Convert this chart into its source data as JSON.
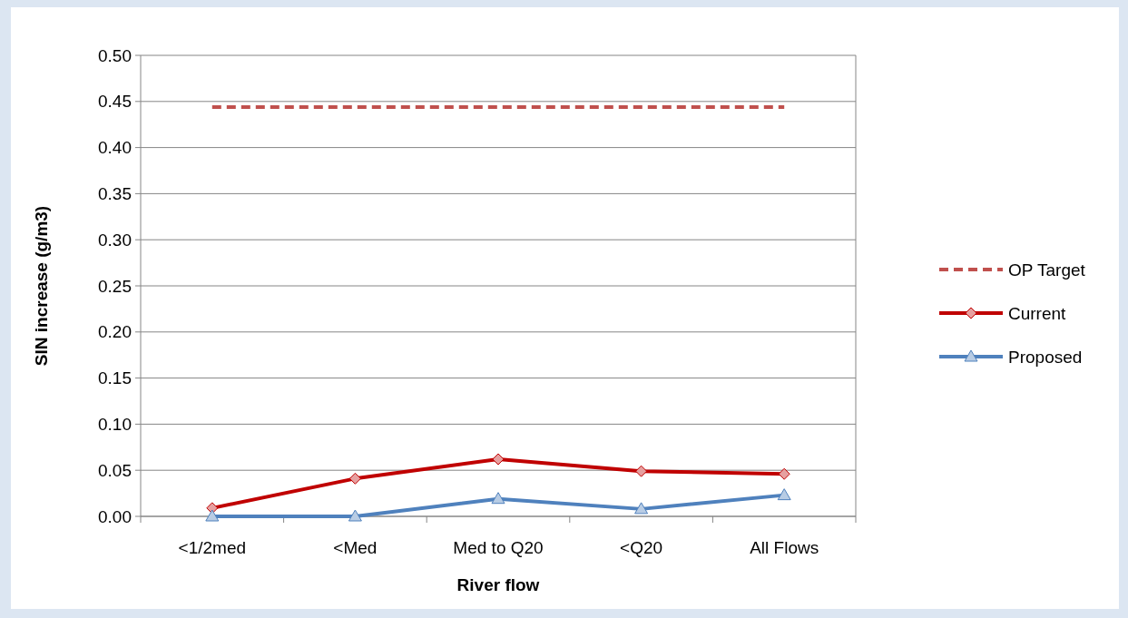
{
  "chart_data": {
    "type": "line",
    "xlabel": "River flow",
    "ylabel": "SIN increase (g/m3)",
    "categories": [
      "<1/2med",
      "<Med",
      "Med to Q20",
      "<Q20",
      "All Flows"
    ],
    "series": [
      {
        "name": "OP Target",
        "color": "#c0504d",
        "values": [
          0.444,
          0.444,
          0.444,
          0.444,
          0.444
        ],
        "line_style": "dashed",
        "marker": "none"
      },
      {
        "name": "Current",
        "color": "#c00000",
        "values": [
          0.009,
          0.041,
          0.062,
          0.049,
          0.046
        ],
        "line_style": "solid",
        "marker": "diamond"
      },
      {
        "name": "Proposed",
        "color": "#4f81bd",
        "values": [
          0,
          0,
          0.019,
          0.008,
          0.023
        ],
        "line_style": "solid",
        "marker": "triangle"
      }
    ],
    "ylim": [
      0,
      0.5
    ],
    "yticks": [
      {
        "value": 0,
        "label": "0.00"
      },
      {
        "value": 0.05,
        "label": "0.05"
      },
      {
        "value": 0.1,
        "label": "0.10"
      },
      {
        "value": 0.15,
        "label": "0.15"
      },
      {
        "value": 0.2,
        "label": "0.20"
      },
      {
        "value": 0.25,
        "label": "0.25"
      },
      {
        "value": 0.3,
        "label": "0.30"
      },
      {
        "value": 0.35,
        "label": "0.35"
      },
      {
        "value": 0.4,
        "label": "0.40"
      },
      {
        "value": 0.45,
        "label": "0.45"
      },
      {
        "value": 0.5,
        "label": "0.50"
      }
    ],
    "grid": "y",
    "legend": "right"
  }
}
